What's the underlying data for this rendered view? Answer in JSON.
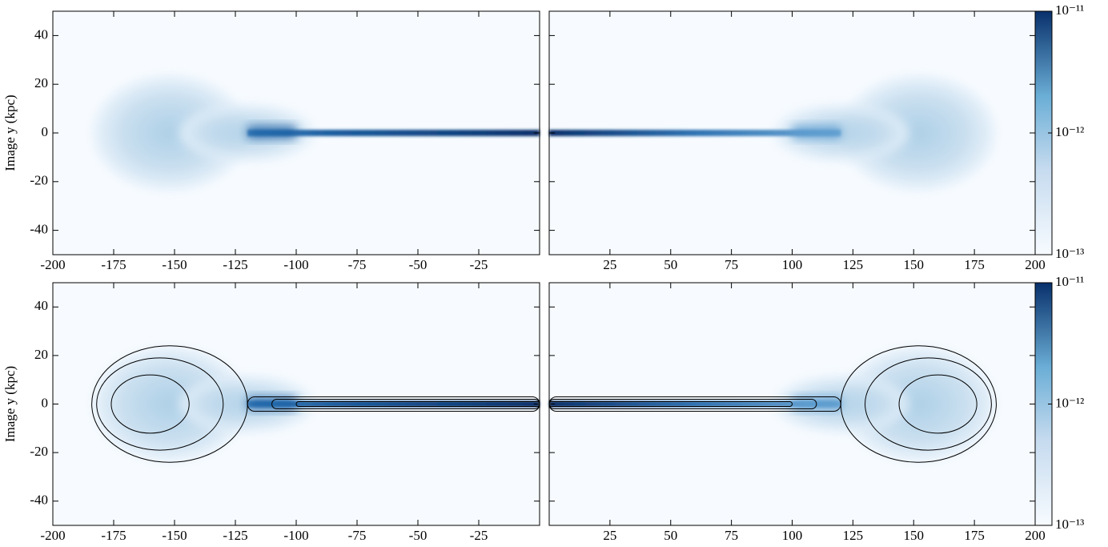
{
  "chart_data": [
    {
      "type": "image",
      "ylabel": "Image y  (kpc)",
      "xlim": [
        -200,
        0
      ],
      "ylim": [
        -50,
        50
      ],
      "xticks": [
        -200,
        -175,
        -150,
        -125,
        -100,
        -75,
        -50,
        -25
      ],
      "yticks": [
        -40,
        -20,
        0,
        20,
        40
      ],
      "ytick_labels": true,
      "contours": false
    },
    {
      "type": "image",
      "xlim": [
        0,
        200
      ],
      "ylim": [
        -50,
        50
      ],
      "xticks": [
        25,
        50,
        75,
        100,
        125,
        150,
        175,
        200
      ],
      "yticks": [
        -40,
        -20,
        0,
        20,
        40
      ],
      "ytick_labels": false,
      "contours": false,
      "colorbar": {
        "scale": "log",
        "lim": [
          1e-13,
          1e-11
        ],
        "ticks": [
          {
            "value": 1e-13,
            "label": "10⁻¹³"
          },
          {
            "value": 1e-12,
            "label": "10⁻¹²"
          },
          {
            "value": 1e-11,
            "label": "10⁻¹¹"
          }
        ]
      }
    },
    {
      "type": "image",
      "ylabel": "Image y  (kpc)",
      "xlim": [
        -200,
        0
      ],
      "ylim": [
        -50,
        50
      ],
      "xticks": [
        -200,
        -175,
        -150,
        -125,
        -100,
        -75,
        -50,
        -25
      ],
      "yticks": [
        -40,
        -20,
        0,
        20,
        40
      ],
      "ytick_labels": true,
      "contours": true
    },
    {
      "type": "image",
      "xlim": [
        0,
        200
      ],
      "ylim": [
        -50,
        50
      ],
      "xticks": [
        25,
        50,
        75,
        100,
        125,
        150,
        175,
        200
      ],
      "yticks": [
        -40,
        -20,
        0,
        20,
        40
      ],
      "ytick_labels": false,
      "contours": true,
      "colorbar": {
        "scale": "log",
        "lim": [
          1e-13,
          1e-11
        ],
        "ticks": [
          {
            "value": 1e-13,
            "label": "10⁻¹³"
          },
          {
            "value": 1e-12,
            "label": "10⁻¹²"
          },
          {
            "value": 1e-11,
            "label": "10⁻¹¹"
          }
        ]
      }
    }
  ]
}
